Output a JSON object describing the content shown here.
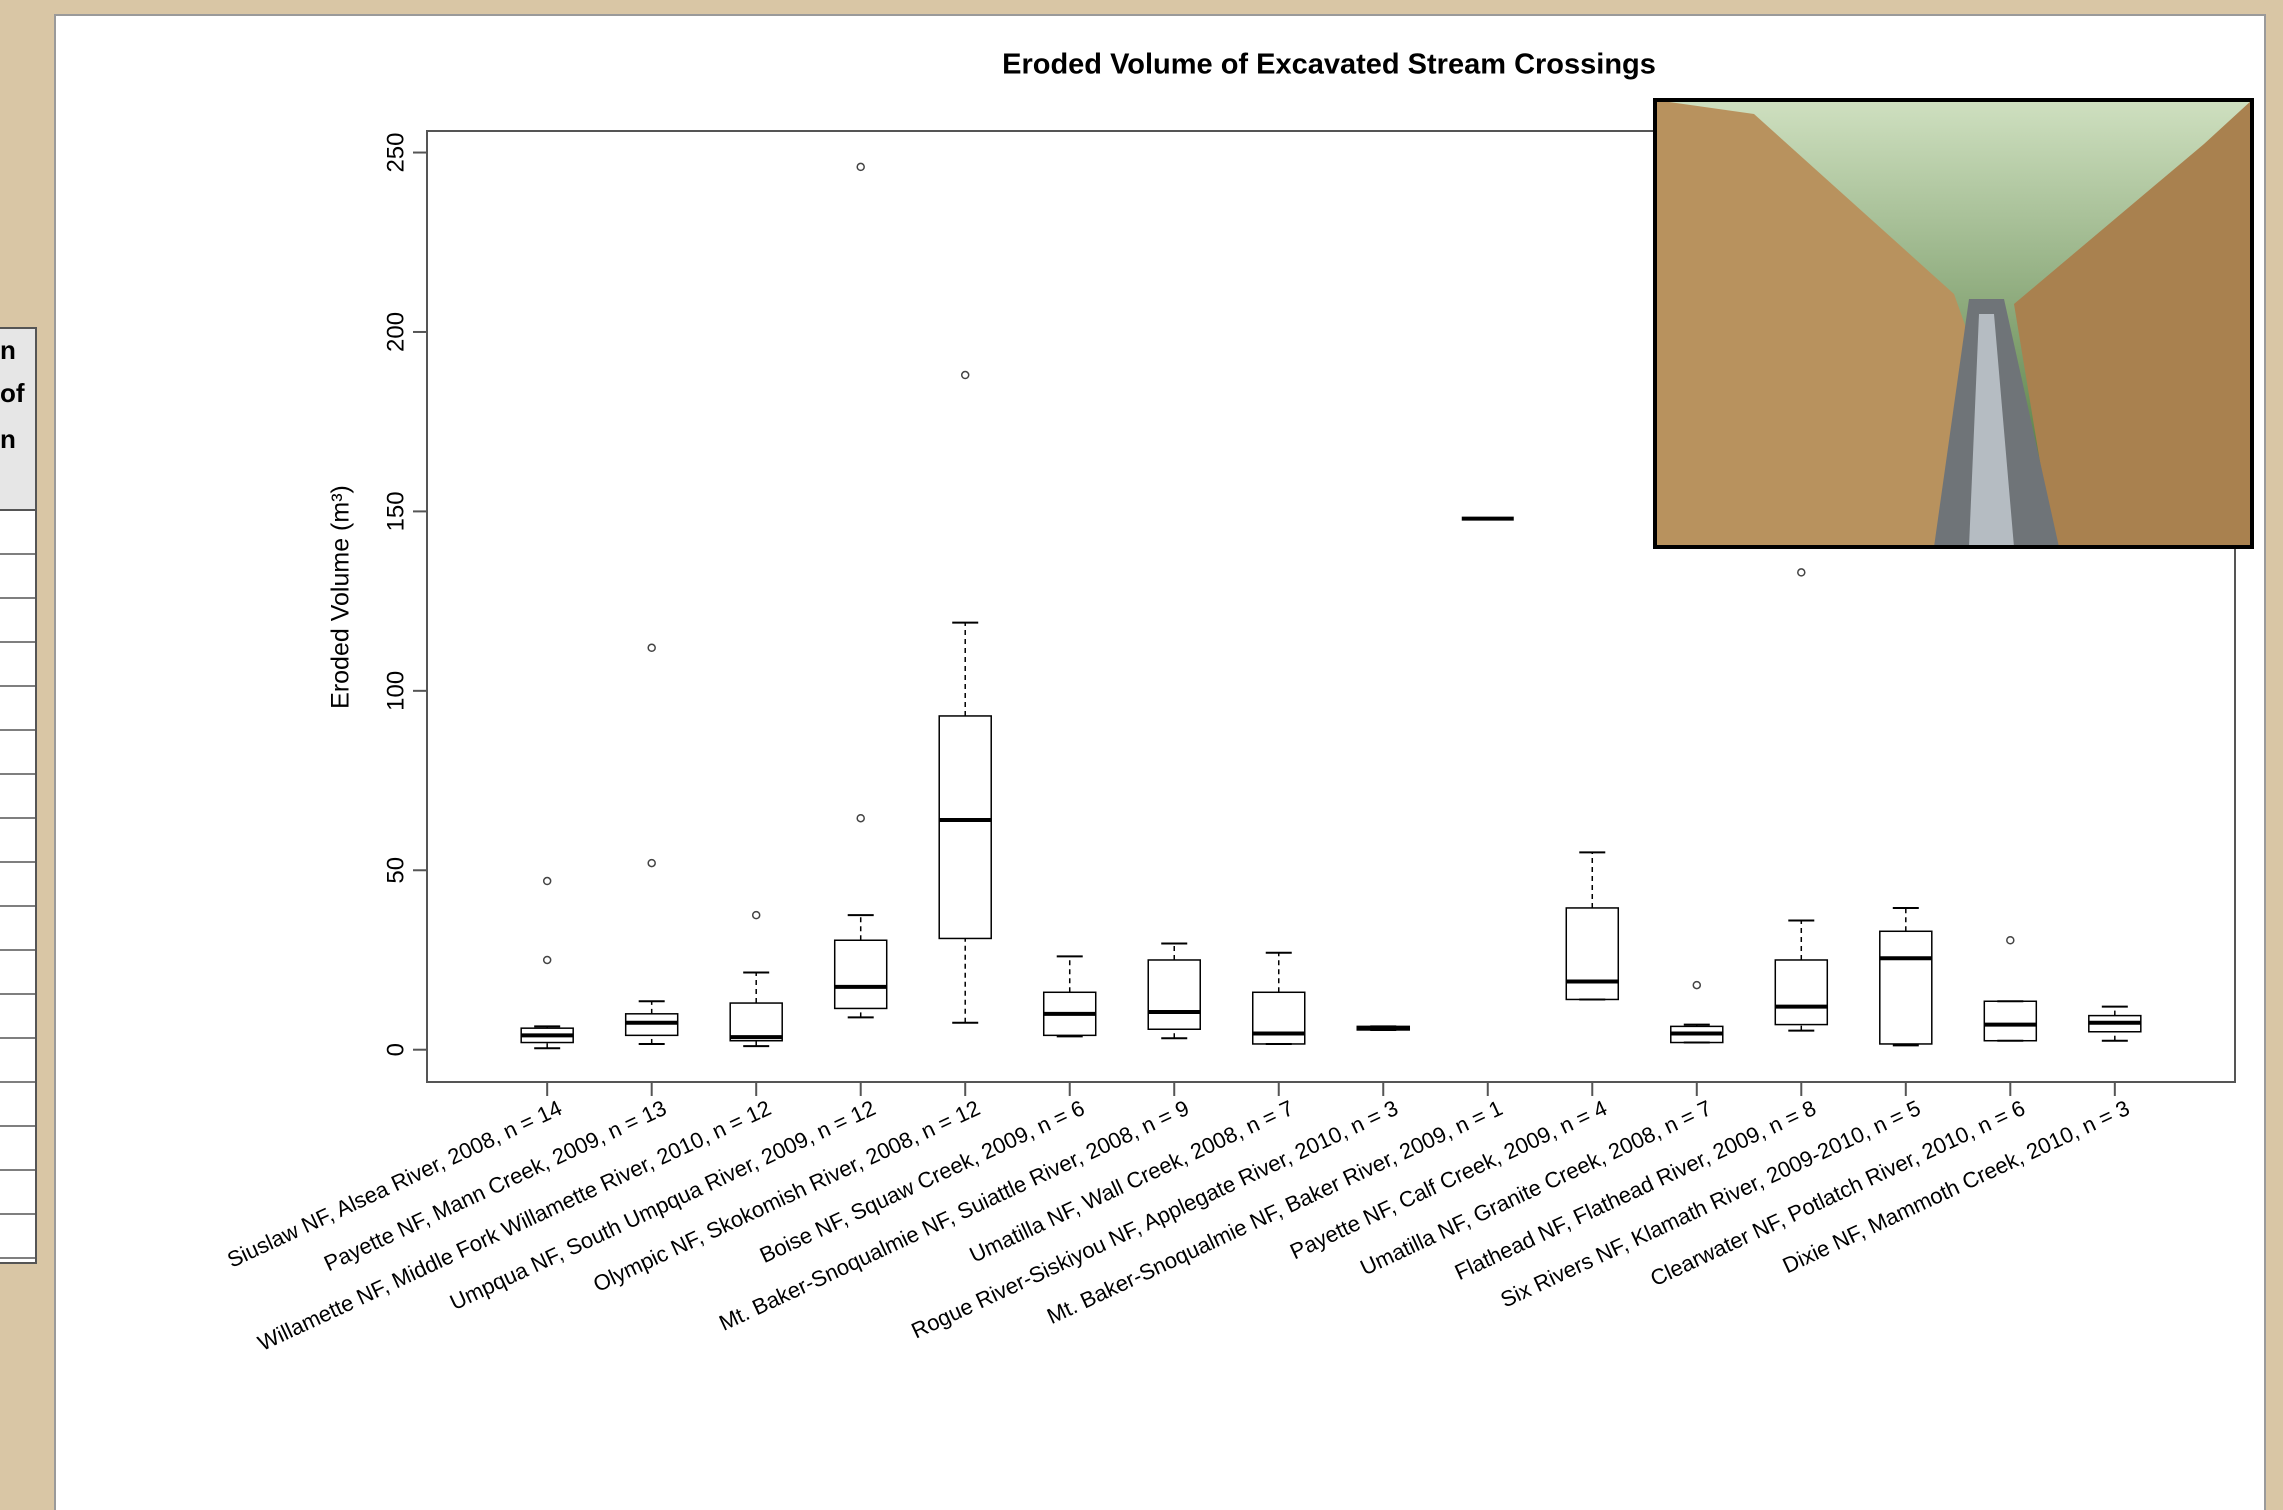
{
  "chart_data": {
    "type": "box",
    "title": "Eroded Volume of Excavated Stream Crossings",
    "y_label": "Eroded Volume (m³)",
    "categories": [
      "Siuslaw NF, Alsea River, 2008, n = 14",
      "Payette NF, Mann Creek, 2009, n = 13",
      "Willamette NF, Middle Fork Willamette River, 2010, n = 12",
      "Umpqua NF, South Umpqua River, 2009, n = 12",
      "Olympic NF, Skokomish River, 2008, n = 12",
      "Boise NF, Squaw Creek, 2009, n = 6",
      "Mt. Baker-Snoqualmie NF, Suiattle River, 2008, n = 9",
      "Umatilla NF, Wall Creek, 2008, n = 7",
      "Rogue River-Siskiyou NF, Applegate River, 2010, n = 3",
      "Mt. Baker-Snoqualmie NF, Baker River, 2009, n = 1",
      "Payette NF, Calf Creek, 2009, n = 4",
      "Umatilla NF, Granite Creek, 2008, n = 7",
      "Flathead NF, Flathead River, 2009, n = 8",
      "Six Rivers NF, Klamath River, 2009-2010, n = 5",
      "Clearwater NF, Potlatch River, 2010, n = 6",
      "Dixie NF, Mammoth Creek, 2010, n = 3"
    ],
    "boxes": [
      {
        "min": 0.4,
        "q1": 2,
        "median": 4,
        "q3": 6,
        "max": 6.5,
        "outliers": [
          25,
          47
        ]
      },
      {
        "min": 1.6,
        "q1": 4,
        "median": 7.5,
        "q3": 10,
        "max": 13.5,
        "outliers": [
          52,
          112
        ]
      },
      {
        "min": 1,
        "q1": 2.5,
        "median": 3.5,
        "q3": 13,
        "max": 21.5,
        "outliers": [
          37.5
        ]
      },
      {
        "min": 9,
        "q1": 11.5,
        "median": 17.5,
        "q3": 30.5,
        "max": 37.5,
        "outliers": [
          64.5,
          246
        ]
      },
      {
        "min": 7.5,
        "q1": 31,
        "median": 64,
        "q3": 93,
        "max": 119,
        "outliers": [
          188
        ]
      },
      {
        "min": 3.7,
        "q1": 4,
        "median": 10,
        "q3": 16,
        "max": 26,
        "outliers": []
      },
      {
        "min": 3.2,
        "q1": 5.7,
        "median": 10.5,
        "q3": 25,
        "max": 29.6,
        "outliers": []
      },
      {
        "min": 1.6,
        "q1": 1.6,
        "median": 4.5,
        "q3": 16,
        "max": 27,
        "outliers": []
      },
      {
        "min": 5.5,
        "q1": 5.5,
        "median": 6,
        "q3": 6.5,
        "max": 6.5,
        "outliers": []
      },
      {
        "min": 148,
        "q1": 148,
        "median": 148,
        "q3": 148,
        "max": 148,
        "outliers": []
      },
      {
        "min": 14,
        "q1": 14,
        "median": 19,
        "q3": 39.5,
        "max": 55,
        "outliers": []
      },
      {
        "min": 2,
        "q1": 2,
        "median": 4.5,
        "q3": 6.5,
        "max": 7,
        "outliers": [
          18
        ]
      },
      {
        "min": 5.3,
        "q1": 7,
        "median": 12,
        "q3": 25,
        "max": 36,
        "outliers": [
          133
        ]
      },
      {
        "min": 1.2,
        "q1": 1.6,
        "median": 25.5,
        "q3": 33,
        "max": 39.5,
        "outliers": []
      },
      {
        "min": 2.5,
        "q1": 2.5,
        "median": 7,
        "q3": 13.5,
        "max": 13.5,
        "outliers": [
          30.5
        ]
      },
      {
        "min": 2.5,
        "q1": 5,
        "median": 7.5,
        "q3": 9.5,
        "max": 12,
        "outliers": []
      }
    ],
    "ylim": [
      -9,
      256
    ],
    "yticks": [
      0,
      50,
      100,
      150,
      200,
      250
    ],
    "color": "#000000"
  },
  "side_table": {
    "header_lines": [
      "n",
      "of",
      "n"
    ]
  }
}
